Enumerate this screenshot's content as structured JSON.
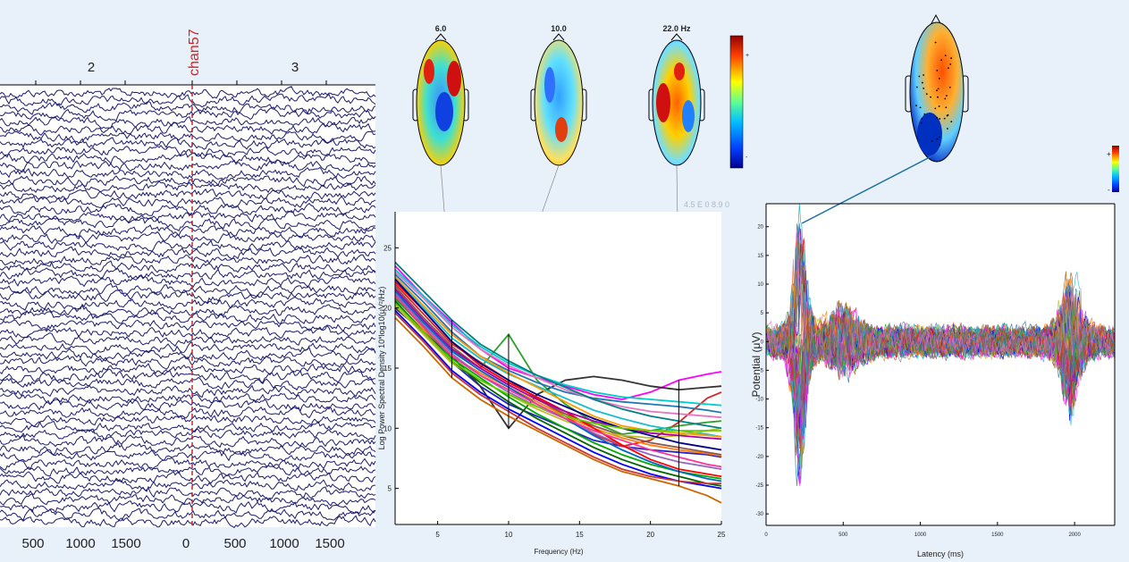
{
  "eeg_panel": {
    "highlight_channel": "chan57",
    "epoch_labels": [
      "2",
      "3"
    ],
    "time_tick_labels": [
      "500",
      "1000",
      "1500",
      "0",
      "500",
      "1000",
      "1500"
    ],
    "trace_color": "#1a1a6e",
    "marker_color": "#d62020"
  },
  "spectrum_panel": {
    "topo_labels": [
      "6.0",
      "10.0",
      "22.0 Hz"
    ],
    "corner_text": "4.5 E 0 8.9 0",
    "colorbar_plus": "+",
    "colorbar_minus": "-"
  },
  "erp_panel": {
    "colorbar_plus": "+",
    "colorbar_minus": "-"
  },
  "chart_data": [
    {
      "type": "line",
      "title": "",
      "xlabel": "Frequency (Hz)",
      "ylabel": "Log Power Spectral Density 10*log10(μV²/Hz)",
      "xlim": [
        2,
        25
      ],
      "ylim": [
        2,
        28
      ],
      "x_ticks": [
        5,
        10,
        15,
        20,
        25
      ],
      "y_ticks": [
        5,
        10,
        15,
        20,
        25
      ],
      "marker_frequencies": [
        6,
        10,
        22
      ],
      "x": [
        2,
        4,
        6,
        8,
        10,
        12,
        14,
        16,
        18,
        20,
        22,
        24,
        25
      ],
      "series": [
        {
          "color": "#ff00ff",
          "values": [
            23.5,
            21.0,
            18.8,
            16.6,
            15.0,
            14.2,
            13.5,
            12.8,
            12.4,
            13.0,
            14.0,
            14.5,
            14.7
          ]
        },
        {
          "color": "#2222cc",
          "values": [
            21.5,
            18.5,
            15.5,
            13.5,
            12.0,
            11.0,
            10.0,
            9.0,
            8.5,
            8.2,
            8.0,
            7.8,
            7.6
          ]
        },
        {
          "color": "#d62728",
          "values": [
            22.0,
            19.5,
            17.0,
            15.5,
            14.0,
            12.5,
            11.0,
            9.5,
            8.5,
            9.0,
            10.5,
            12.5,
            13.0
          ]
        },
        {
          "color": "#2ca02c",
          "values": [
            21.0,
            18.8,
            16.5,
            15.0,
            17.8,
            14.0,
            12.0,
            10.5,
            9.5,
            9.8,
            10.2,
            10.5,
            10.6
          ]
        },
        {
          "color": "#333333",
          "values": [
            20.0,
            18.0,
            16.0,
            13.5,
            10.0,
            12.8,
            14.0,
            14.3,
            14.0,
            13.5,
            13.2,
            13.4,
            13.5
          ]
        },
        {
          "color": "#17becf",
          "values": [
            22.5,
            20.0,
            17.5,
            15.8,
            14.5,
            13.5,
            12.5,
            11.5,
            10.8,
            10.2,
            9.8,
            9.5,
            9.3
          ]
        },
        {
          "color": "#ff7f0e",
          "values": [
            20.5,
            18.2,
            16.0,
            14.6,
            13.4,
            12.2,
            11.0,
            10.0,
            9.2,
            8.6,
            8.2,
            7.9,
            7.7
          ]
        },
        {
          "color": "#1f77b4",
          "values": [
            22.8,
            20.5,
            18.0,
            16.0,
            14.8,
            13.8,
            13.0,
            12.5,
            12.2,
            12.0,
            11.8,
            11.5,
            11.3
          ]
        },
        {
          "color": "#8c564b",
          "values": [
            21.8,
            19.2,
            16.8,
            15.0,
            13.6,
            12.4,
            11.2,
            10.2,
            9.4,
            8.8,
            8.4,
            8.0,
            7.8
          ]
        },
        {
          "color": "#e377c2",
          "values": [
            23.0,
            20.8,
            18.4,
            16.6,
            15.2,
            14.2,
            13.2,
            12.4,
            11.8,
            11.4,
            11.2,
            11.0,
            10.9
          ]
        },
        {
          "color": "#bcbd22",
          "values": [
            20.2,
            17.8,
            15.4,
            14.0,
            12.8,
            11.6,
            10.6,
            9.8,
            9.4,
            9.2,
            9.4,
            9.8,
            10.0
          ]
        },
        {
          "color": "#9467bd",
          "values": [
            21.2,
            18.6,
            16.2,
            14.4,
            13.0,
            11.8,
            10.8,
            9.6,
            8.6,
            7.8,
            7.2,
            6.8,
            6.6
          ]
        },
        {
          "color": "#ff0000",
          "values": [
            22.2,
            19.8,
            17.2,
            15.2,
            13.8,
            12.6,
            11.4,
            10.0,
            8.6,
            7.4,
            6.6,
            6.2,
            6.0
          ]
        },
        {
          "color": "#00aa00",
          "values": [
            20.8,
            18.4,
            15.8,
            14.2,
            12.6,
            11.2,
            10.0,
            8.8,
            7.8,
            7.0,
            6.4,
            6.0,
            5.8
          ]
        },
        {
          "color": "#0000ff",
          "values": [
            19.8,
            17.4,
            14.8,
            13.0,
            11.6,
            10.4,
            9.2,
            8.0,
            7.0,
            6.2,
            5.6,
            5.2,
            5.0
          ]
        },
        {
          "color": "#00cccc",
          "values": [
            23.2,
            21.0,
            18.6,
            16.8,
            15.4,
            14.4,
            13.6,
            13.0,
            12.6,
            12.4,
            12.2,
            12.0,
            11.9
          ]
        },
        {
          "color": "#aa00aa",
          "values": [
            21.6,
            19.0,
            16.6,
            15.0,
            13.6,
            12.4,
            11.4,
            10.6,
            10.0,
            9.6,
            9.4,
            9.2,
            9.1
          ]
        },
        {
          "color": "#ff9900",
          "values": [
            22.6,
            20.2,
            17.8,
            16.0,
            14.6,
            13.4,
            12.2,
            11.0,
            10.2,
            9.8,
            9.6,
            9.4,
            9.3
          ]
        },
        {
          "color": "#006400",
          "values": [
            20.6,
            18.0,
            15.6,
            13.8,
            12.2,
            10.8,
            9.6,
            8.4,
            7.4,
            6.6,
            6.0,
            5.4,
            5.2
          ]
        },
        {
          "color": "#0066cc",
          "values": [
            21.4,
            18.8,
            16.4,
            14.8,
            13.4,
            12.0,
            10.8,
            9.4,
            8.2,
            7.2,
            6.4,
            5.8,
            5.6
          ]
        },
        {
          "color": "#cc3333",
          "values": [
            19.6,
            17.2,
            14.6,
            12.8,
            11.4,
            10.0,
            8.8,
            7.6,
            6.6,
            6.0,
            5.6,
            5.4,
            5.4
          ]
        },
        {
          "color": "#00008b",
          "values": [
            22.4,
            19.8,
            17.2,
            15.4,
            14.0,
            12.8,
            11.8,
            10.8,
            10.0,
            9.4,
            8.8,
            8.4,
            8.2
          ]
        },
        {
          "color": "#66cc00",
          "values": [
            20.4,
            18.0,
            15.6,
            14.0,
            12.8,
            11.8,
            11.0,
            10.4,
            10.0,
            9.8,
            9.8,
            9.8,
            9.8
          ]
        },
        {
          "color": "#ff3399",
          "values": [
            21.0,
            18.4,
            16.0,
            14.4,
            13.2,
            12.0,
            10.8,
            9.8,
            9.0,
            8.2,
            7.6,
            7.0,
            6.8
          ]
        },
        {
          "color": "#008080",
          "values": [
            23.8,
            21.4,
            19.0,
            17.0,
            15.6,
            14.4,
            13.4,
            12.4,
            11.6,
            11.0,
            10.6,
            10.2,
            10.0
          ]
        },
        {
          "color": "#cc6600",
          "values": [
            19.2,
            16.8,
            14.2,
            12.4,
            11.0,
            9.8,
            8.6,
            7.4,
            6.4,
            5.8,
            5.2,
            4.4,
            3.8
          ]
        }
      ]
    },
    {
      "type": "line",
      "title": "",
      "xlabel": "Latency (ms)",
      "ylabel": "Potential (μV)",
      "xlim": [
        0,
        2260
      ],
      "ylim": [
        -32,
        24
      ],
      "x_ticks": [
        0,
        500,
        1000,
        1500,
        2000
      ],
      "y_ticks": [
        20,
        15,
        10,
        5,
        0,
        -5,
        -10,
        -15,
        -20,
        -25,
        -30
      ],
      "n_channels": 64,
      "note_peak_latency_ms": 220
    }
  ]
}
